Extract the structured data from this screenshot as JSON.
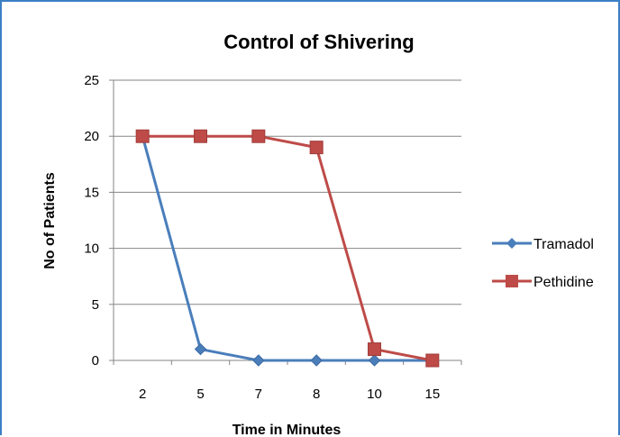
{
  "chart_data": {
    "type": "line",
    "title": "Control of Shivering",
    "xlabel": "Time in Minutes",
    "ylabel": "No of Patients",
    "categories": [
      "2",
      "5",
      "7",
      "8",
      "10",
      "15"
    ],
    "ylim": [
      0,
      25
    ],
    "yticks": [
      "0",
      "5",
      "10",
      "15",
      "20",
      "25"
    ],
    "grid": true,
    "legend_position": "right",
    "series": [
      {
        "name": "Tramadol",
        "values": [
          20,
          1,
          0,
          0,
          0,
          0
        ],
        "color": "#4a7ebb",
        "marker": "diamond"
      },
      {
        "name": "Pethidine",
        "values": [
          20,
          20,
          20,
          19,
          1,
          0
        ],
        "color": "#be4b48",
        "marker": "square"
      }
    ]
  }
}
